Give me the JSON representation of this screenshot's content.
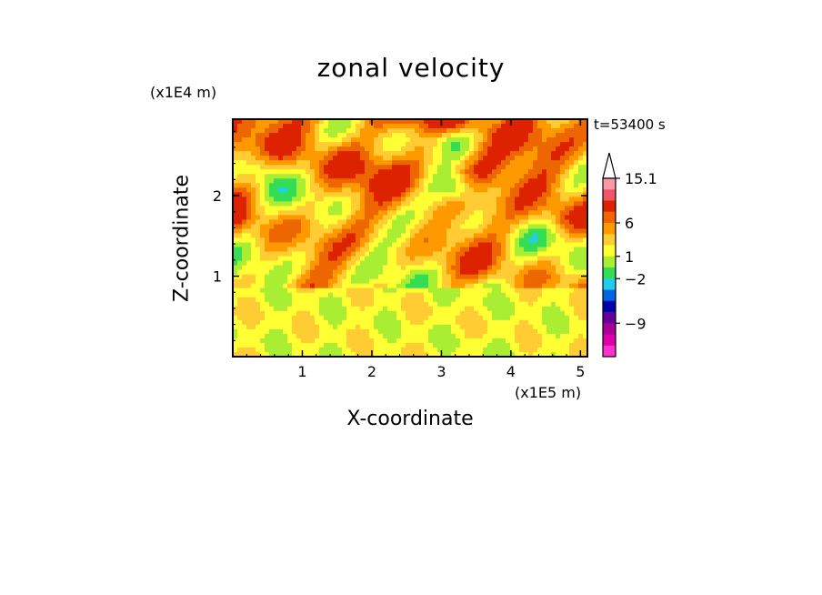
{
  "chart_data": {
    "type": "heatmap",
    "title": "zonal velocity",
    "xlabel": "X-coordinate",
    "ylabel": "Z-coordinate",
    "x_unit": "(x1E5 m)",
    "y_unit": "(x1E4 m)",
    "annotation": "t=53400 s",
    "x_ticks": [
      1,
      2,
      3,
      4,
      5
    ],
    "y_ticks": [
      1,
      2
    ],
    "xlim": [
      0,
      5.1
    ],
    "ylim": [
      0,
      2.95
    ],
    "colorbar": {
      "labels": [
        "15.1",
        "6",
        "1",
        "−2",
        "−9"
      ],
      "colors": [
        "#ff99aa",
        "#ee5566",
        "#dd2200",
        "#ee6600",
        "#ff9900",
        "#ffcc33",
        "#ffff33",
        "#aaee33",
        "#33dd55",
        "#22ccee",
        "#0066dd",
        "#0000aa",
        "#660099",
        "#aa0099",
        "#dd00aa",
        "#ff33cc"
      ],
      "extend_max": true
    },
    "field_palette": [
      "#0000aa",
      "#0066dd",
      "#22ccee",
      "#33dd55",
      "#aaee33",
      "#ffff33",
      "#ffcc33",
      "#ff9900",
      "#ee6600",
      "#dd2200"
    ]
  }
}
